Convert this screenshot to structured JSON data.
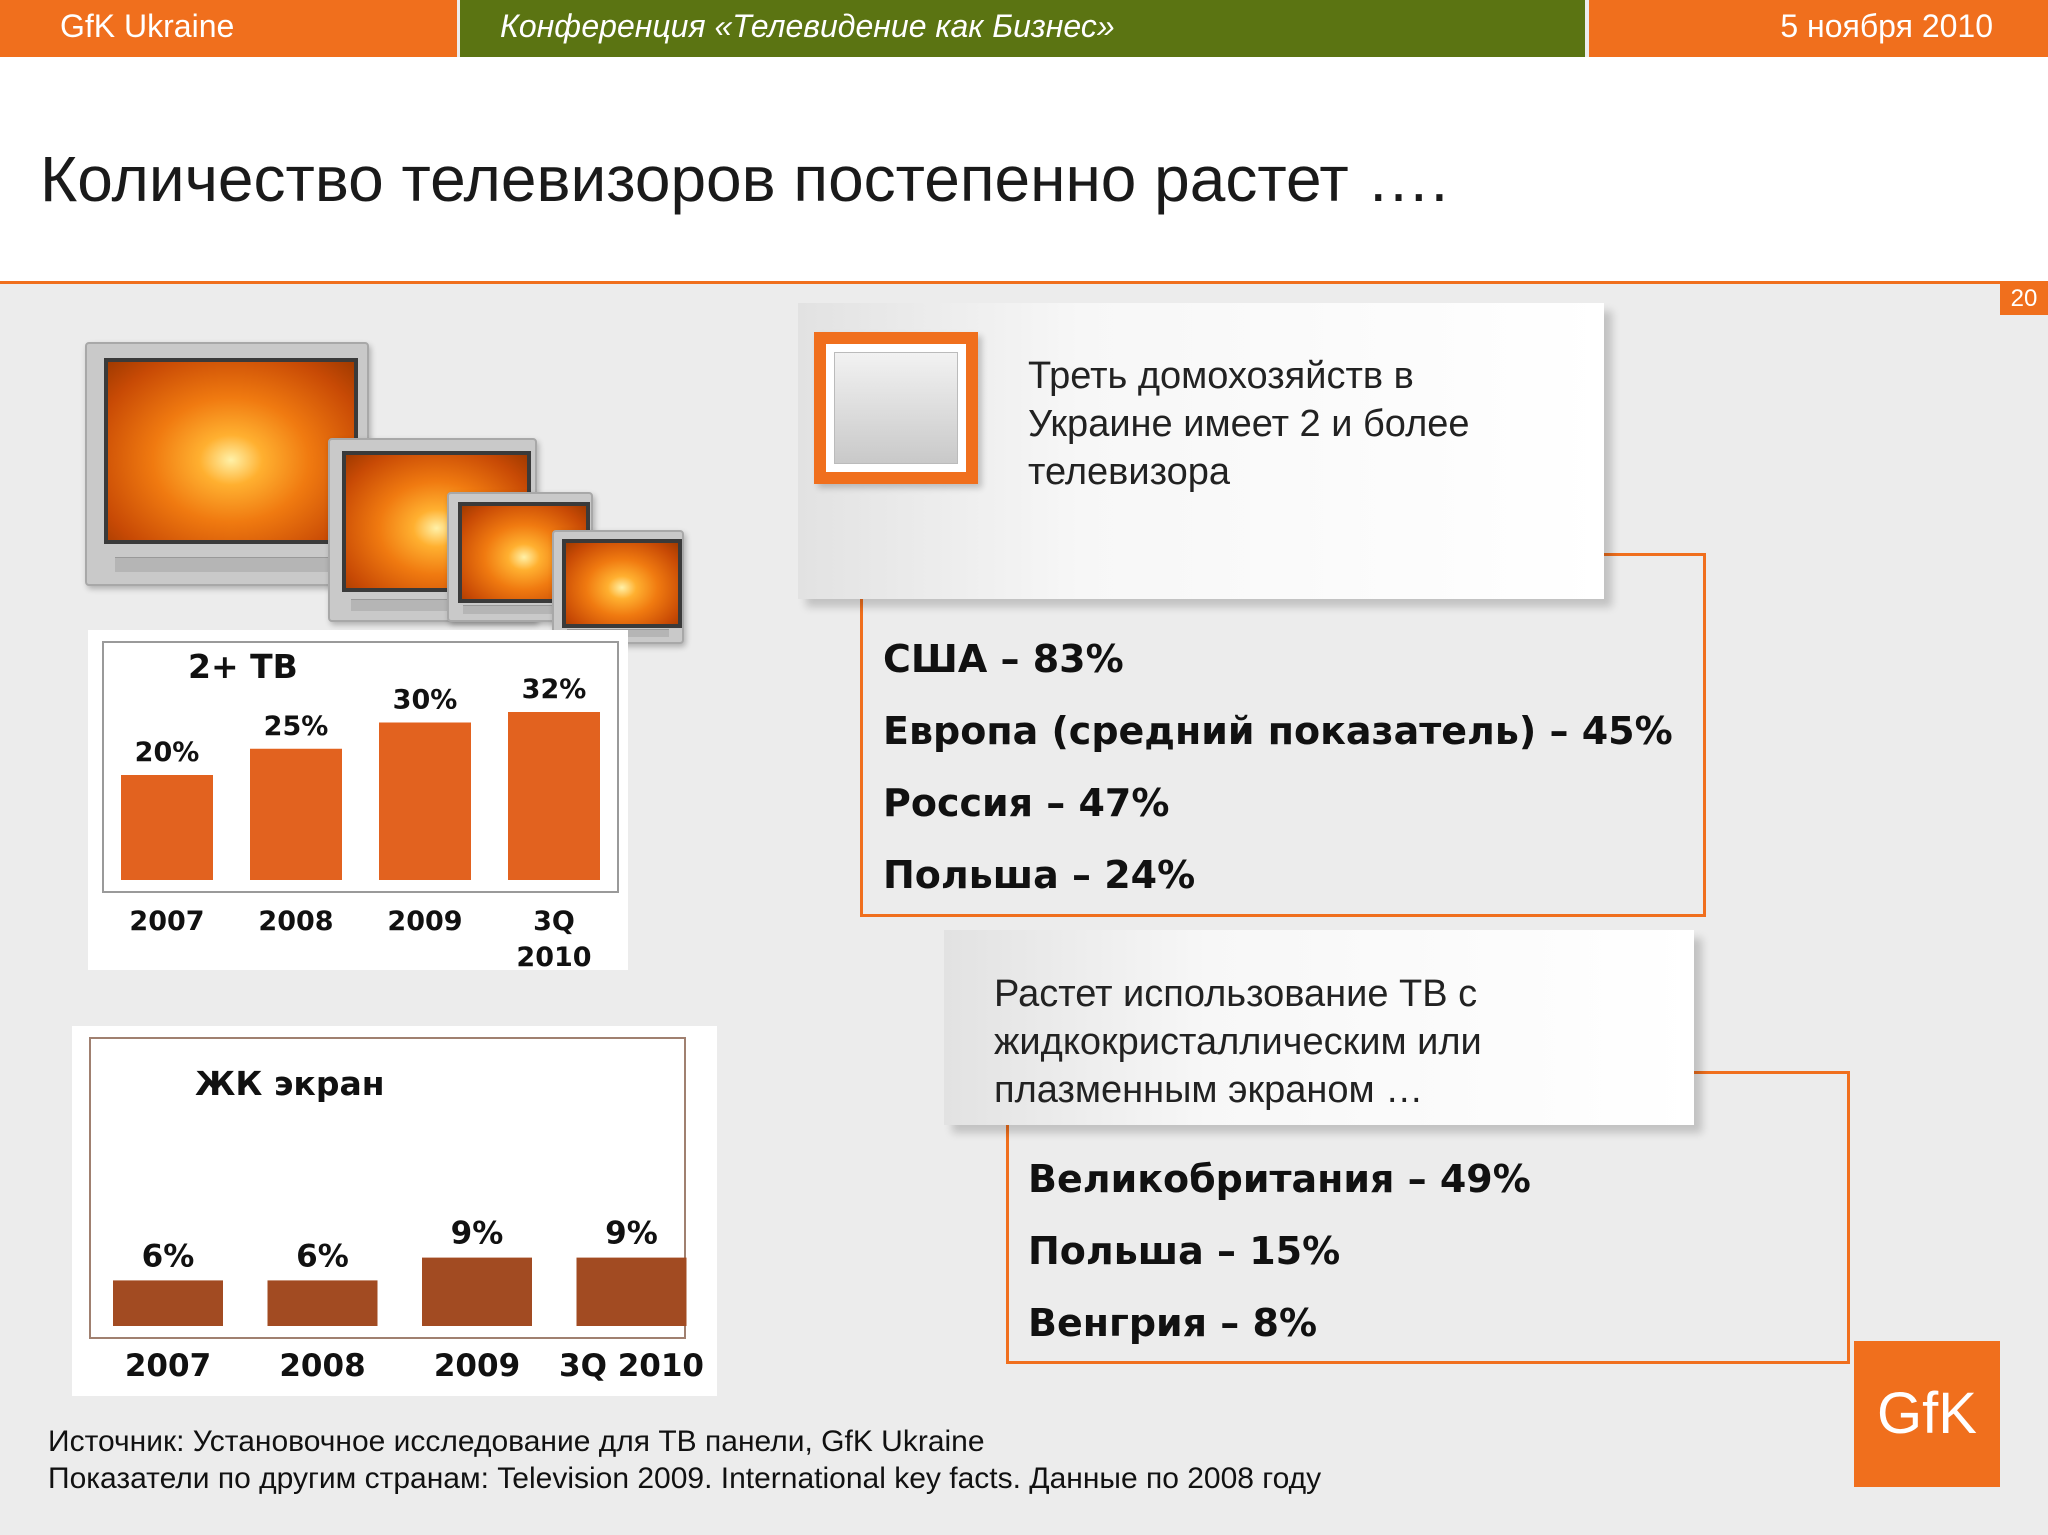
{
  "header": {
    "left": "GfK Ukraine",
    "center": "Конференция «Телевидение  как  Бизнес»",
    "right": "5 ноября 2010"
  },
  "title": "Количество телевизоров постепенно растет ….",
  "page_number": "20",
  "chart_data": [
    {
      "type": "bar",
      "title": "2+ ТВ",
      "categories": [
        "2007",
        "2008",
        "2009",
        "3Q 2010"
      ],
      "values": [
        20,
        25,
        30,
        32
      ],
      "value_labels": [
        "20%",
        "25%",
        "30%",
        "32%"
      ],
      "unit": "%",
      "ylim": [
        0,
        40
      ],
      "color": "#e2621f"
    },
    {
      "type": "bar",
      "title": "ЖК экран",
      "categories": [
        "2007",
        "2008",
        "2009",
        "3Q 2010"
      ],
      "values": [
        6,
        6,
        9,
        9
      ],
      "value_labels": [
        "6%",
        "6%",
        "9%",
        "9%"
      ],
      "unit": "%",
      "ylim": [
        0,
        35
      ],
      "color": "#a24b22"
    }
  ],
  "panel1": {
    "text": [
      "Треть домохозяйств в",
      "Украине имеет 2 и более",
      "телевизора"
    ],
    "stats": [
      "США – 83%",
      "Европа (средний показатель) – 45%",
      "Россия  – 47%",
      "Польша – 24%"
    ]
  },
  "panel2": {
    "text": [
      "Растет использование ТВ с",
      "жидкокристаллическим или",
      "плазменным экраном …"
    ],
    "stats": [
      "Великобритания – 49%",
      "Польша – 15%",
      "Венгрия – 8%"
    ]
  },
  "logo": "GfK",
  "source": [
    "Источник: Установочное исследование для ТВ панели, GfK Ukraine",
    "Показатели по другим странам: Television 2009. International key facts. Данные по 2008 году"
  ],
  "colors": {
    "orange": "#f06f1d",
    "olive": "#5b7412",
    "bar1": "#e2621f",
    "bar2": "#a24b22"
  }
}
